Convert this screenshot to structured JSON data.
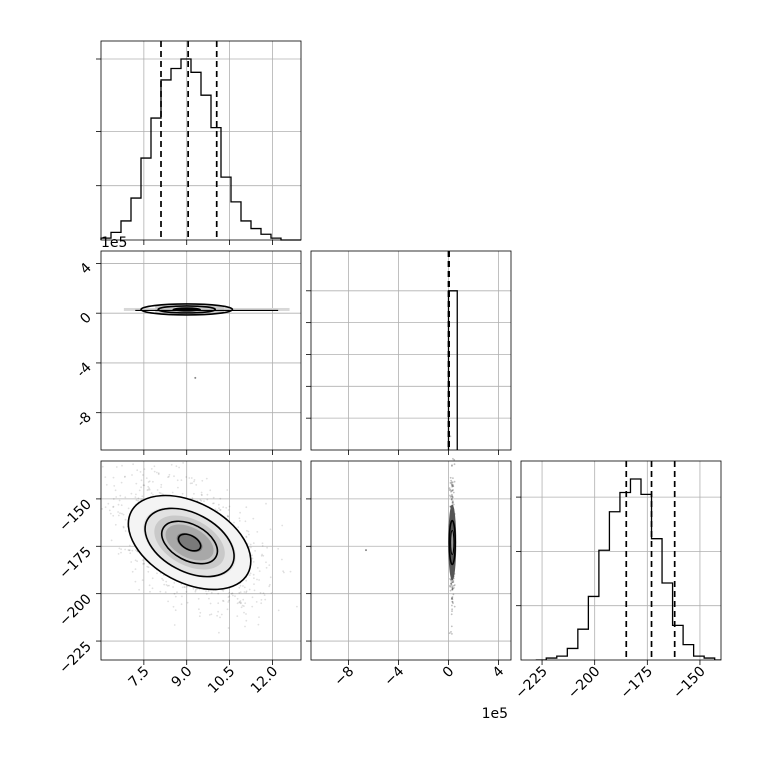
{
  "chart_data": {
    "type": "corner",
    "parameters": 3,
    "panels": [
      {
        "id": "hist-p1",
        "kind": "histogram",
        "x_range": [
          6.0,
          13.0
        ],
        "x_ticks": [
          7.5,
          9.0,
          10.5,
          12.0
        ],
        "bins_edges": [
          6.0,
          6.35,
          6.7,
          7.05,
          7.4,
          7.75,
          8.1,
          8.45,
          8.8,
          9.15,
          9.5,
          9.85,
          10.2,
          10.55,
          10.9,
          11.25,
          11.6,
          11.95,
          12.3,
          12.65,
          13.0
        ],
        "counts": [
          1,
          4,
          10,
          22,
          43,
          64,
          84,
          90,
          95,
          88,
          76,
          59,
          33,
          20,
          10,
          6,
          3,
          1,
          0,
          0
        ],
        "quantiles": [
          8.1,
          9.05,
          10.05
        ]
      },
      {
        "id": "scatter-p1-p2",
        "kind": "2d-density",
        "x_range": [
          6.0,
          13.0
        ],
        "y_range": [
          -11.0,
          5.0
        ],
        "y_ticks": [
          4,
          0,
          -4,
          -8
        ],
        "y_offset_text": "1e5",
        "center": [
          9.0,
          0.3
        ]
      },
      {
        "id": "hist-p2",
        "kind": "histogram",
        "x_range": [
          -11.0,
          5.0
        ],
        "x_ticks": [
          -8,
          -4,
          0,
          4
        ],
        "bins_edges": [
          0.0,
          0.7
        ],
        "counts": [
          1
        ],
        "quantiles": [
          0.0,
          0.02,
          0.05
        ]
      },
      {
        "id": "scatter-p1-p3",
        "kind": "2d-density",
        "x_range": [
          6.0,
          13.0
        ],
        "y_range": [
          -235,
          -130
        ],
        "y_ticks": [
          -150,
          -175,
          -200,
          -225
        ],
        "center": [
          9.1,
          -173
        ]
      },
      {
        "id": "scatter-p2-p3",
        "kind": "2d-density",
        "x_range": [
          -11.0,
          5.0
        ],
        "y_range": [
          -235,
          -130
        ],
        "x_offset_text": "1e5",
        "center": [
          0.3,
          -173
        ]
      },
      {
        "id": "hist-p3",
        "kind": "histogram",
        "x_range": [
          -235,
          -140
        ],
        "x_ticks": [
          -225,
          -200,
          -175,
          -150
        ],
        "bins_edges": [
          -228,
          -223,
          -218,
          -213,
          -208,
          -203,
          -198,
          -193,
          -188,
          -183,
          -178,
          -173,
          -168,
          -163,
          -158,
          -153,
          -148,
          -143,
          -138
        ],
        "counts": [
          0,
          1,
          2,
          6,
          16,
          33,
          57,
          77,
          87,
          94,
          86,
          63,
          40,
          18,
          8,
          2,
          1,
          0
        ],
        "quantiles": [
          -185,
          -173,
          -162
        ]
      }
    ],
    "grid": true,
    "xlabel": "",
    "ylabel": "",
    "title": ""
  }
}
